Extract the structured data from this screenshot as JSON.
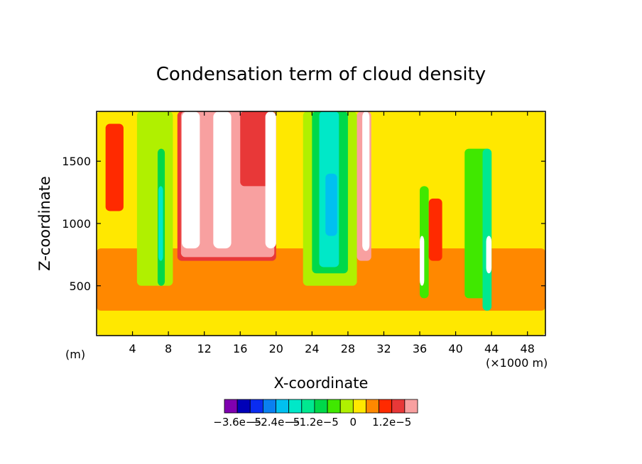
{
  "chart_data": {
    "type": "heatmap",
    "title": "Condensation term of cloud density",
    "xlabel": "X-coordinate",
    "ylabel": "Z-coordinate",
    "x_unit_left": "(m)",
    "x_unit_right": "(×1000 m)",
    "xlim": [
      0,
      50
    ],
    "ylim": [
      100,
      1900
    ],
    "x_ticks": [
      4,
      8,
      12,
      16,
      20,
      24,
      28,
      32,
      36,
      40,
      44,
      48
    ],
    "y_ticks": [
      500,
      1000,
      1500
    ],
    "colorbar": {
      "colors": [
        "#7f00b0",
        "#0000b8",
        "#0a2cf0",
        "#0a80f0",
        "#00c0f0",
        "#00e8c8",
        "#00e890",
        "#00d84a",
        "#40e800",
        "#b0f000",
        "#ffe800",
        "#ff8800",
        "#ff2a00",
        "#e83838",
        "#f8a0a0"
      ],
      "labels": [
        "−3.6e−5",
        "−2.4e−5",
        "−1.2e−5",
        "0",
        "1.2e−5"
      ]
    },
    "regions": [
      {
        "level": 0,
        "x": [
          0,
          50
        ],
        "z": [
          100,
          1900
        ]
      },
      {
        "level": 1,
        "x": [
          0,
          50
        ],
        "z": [
          300,
          800
        ]
      },
      {
        "level": -1,
        "x": [
          4.5,
          8.5
        ],
        "z": [
          500,
          1900
        ]
      },
      {
        "level": -3,
        "x": [
          6.8,
          7.6
        ],
        "z": [
          500,
          1600
        ]
      },
      {
        "level": -5,
        "x": [
          6.9,
          7.4
        ],
        "z": [
          700,
          1300
        ]
      },
      {
        "level": -2,
        "x": [
          36,
          37
        ],
        "z": [
          400,
          1300
        ]
      },
      {
        "level": -2,
        "x": [
          41,
          44
        ],
        "z": [
          400,
          1600
        ]
      },
      {
        "level": -4,
        "x": [
          43,
          44
        ],
        "z": [
          300,
          1600
        ]
      },
      {
        "level": -1,
        "x": [
          23,
          29
        ],
        "z": [
          500,
          1900
        ]
      },
      {
        "level": -3,
        "x": [
          24,
          28
        ],
        "z": [
          600,
          1900
        ]
      },
      {
        "level": -5,
        "x": [
          24.8,
          27
        ],
        "z": [
          650,
          1900
        ]
      },
      {
        "level": -6,
        "x": [
          25.5,
          26.8
        ],
        "z": [
          900,
          1400
        ]
      },
      {
        "level": 2,
        "x": [
          1,
          3
        ],
        "z": [
          1100,
          1800
        ]
      },
      {
        "level": 3,
        "x": [
          9,
          20
        ],
        "z": [
          700,
          1900
        ]
      },
      {
        "level": 5,
        "x": [
          9.4,
          19.8
        ],
        "z": [
          730,
          1900
        ]
      },
      {
        "level": 6,
        "x": [
          29,
          30.6
        ],
        "z": [
          700,
          1900
        ]
      },
      {
        "level": 3,
        "x": [
          16,
          20
        ],
        "z": [
          1300,
          1900
        ]
      },
      {
        "level": 2,
        "x": [
          37,
          38.5
        ],
        "z": [
          700,
          1200
        ]
      }
    ],
    "white_regions": [
      {
        "x": [
          9.5,
          11.5
        ],
        "z": [
          800,
          1900
        ]
      },
      {
        "x": [
          13,
          15
        ],
        "z": [
          800,
          1900
        ]
      },
      {
        "x": [
          18.8,
          20
        ],
        "z": [
          800,
          1900
        ]
      },
      {
        "x": [
          29.6,
          30.4
        ],
        "z": [
          780,
          1900
        ]
      },
      {
        "x": [
          36,
          36.5
        ],
        "z": [
          500,
          900
        ]
      },
      {
        "x": [
          43.4,
          44
        ],
        "z": [
          600,
          900
        ]
      }
    ]
  }
}
